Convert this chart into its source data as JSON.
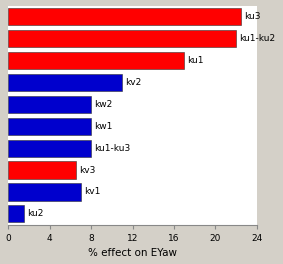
{
  "categories_top_to_bottom": [
    "ku3",
    "ku1-ku2",
    "ku1",
    "kv2",
    "kw2",
    "kw1",
    "ku1-ku3",
    "kv3",
    "kv1",
    "ku2"
  ],
  "values_top_to_bottom": [
    22.5,
    22.0,
    17.0,
    11.0,
    8.0,
    8.0,
    8.0,
    6.5,
    7.0,
    1.5
  ],
  "colors_top_to_bottom": [
    "#ff0000",
    "#ff0000",
    "#ff0000",
    "#0000cd",
    "#0000cd",
    "#0000cd",
    "#0000cd",
    "#ff0000",
    "#0000cd",
    "#0000cd"
  ],
  "xlabel": "% effect on EYaw",
  "xlim": [
    0,
    24
  ],
  "xticks": [
    0,
    4,
    8,
    12,
    16,
    20,
    24
  ],
  "background_color": "#d4d0c8",
  "plot_bg_color": "#ffffff",
  "bar_edge_color": "#333333",
  "label_fontsize": 6.5,
  "tick_fontsize": 6.5,
  "xlabel_fontsize": 7.5
}
